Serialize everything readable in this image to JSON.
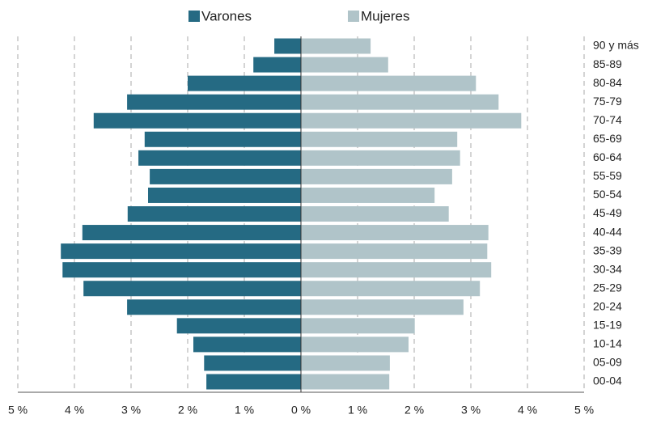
{
  "chart_data": {
    "type": "pyramid",
    "categories": [
      "90 y más",
      "85-89",
      "80-84",
      "75-79",
      "70-74",
      "65-69",
      "60-64",
      "55-59",
      "50-54",
      "45-49",
      "40-44",
      "35-39",
      "30-34",
      "25-29",
      "20-24",
      "15-19",
      "10-14",
      "05-09",
      "00-04"
    ],
    "series": [
      {
        "name": "Varones",
        "color": "#256a83",
        "side": "left",
        "values": [
          0.47,
          0.84,
          2.0,
          3.07,
          3.66,
          2.76,
          2.87,
          2.67,
          2.7,
          3.06,
          3.86,
          4.24,
          4.21,
          3.84,
          3.07,
          2.19,
          1.9,
          1.71,
          1.67
        ]
      },
      {
        "name": "Mujeres",
        "color": "#b0c4c9",
        "side": "right",
        "values": [
          1.23,
          1.54,
          3.09,
          3.49,
          3.89,
          2.76,
          2.81,
          2.67,
          2.36,
          2.61,
          3.31,
          3.29,
          3.36,
          3.16,
          2.87,
          2.01,
          1.9,
          1.57,
          1.56
        ]
      }
    ],
    "xlim": [
      0,
      5
    ],
    "left_xticks": [
      {
        "value": 5,
        "label": "5 %"
      },
      {
        "value": 4,
        "label": "4 %"
      },
      {
        "value": 3,
        "label": "3 %"
      },
      {
        "value": 2,
        "label": "2 %"
      },
      {
        "value": 1,
        "label": "1 %"
      },
      {
        "value": 0,
        "label": "0 %"
      }
    ],
    "right_xticks": [
      {
        "value": 1,
        "label": "1 %"
      },
      {
        "value": 2,
        "label": "2 %"
      },
      {
        "value": 3,
        "label": "3 %"
      },
      {
        "value": 4,
        "label": "4 %"
      },
      {
        "value": 5,
        "label": "5 %"
      }
    ],
    "grid": true,
    "legend": "top"
  }
}
